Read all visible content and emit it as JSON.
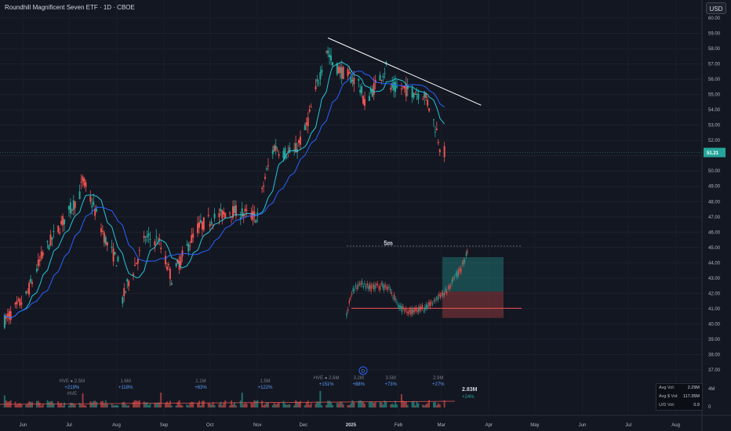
{
  "header": {
    "title": "Roundhill Magnificent Seven ETF · 1D · CBOE",
    "currency": "USD"
  },
  "colors": {
    "background": "#131722",
    "up": "#26a69a",
    "down": "#ef5350",
    "ma_fast": "#2962ff",
    "ma_slow": "#26c6da",
    "trendline": "#ffffff",
    "price_label": "#26a69a"
  },
  "chart_data": {
    "type": "candlestick",
    "title": "Roundhill Magnificent Seven ETF · 1D · CBOE",
    "y_ticks": [
      "60.00",
      "59.00",
      "58.00",
      "57.00",
      "56.00",
      "55.00",
      "54.00",
      "53.00",
      "52.00",
      "51.00",
      "50.00",
      "49.00",
      "48.00",
      "47.00",
      "46.00",
      "45.00",
      "44.00",
      "43.00",
      "42.00",
      "41.00",
      "40.00",
      "39.00",
      "38.00",
      "37.00"
    ],
    "ylim": [
      36.5,
      60.5
    ],
    "x_ticks": [
      "Jun",
      "Jul",
      "Aug",
      "Sep",
      "Oct",
      "Nov",
      "Dec",
      "2025",
      "Feb",
      "Mar",
      "Apr",
      "May",
      "Jun",
      "Jul",
      "Aug"
    ],
    "last_price": "51.21",
    "path": [
      [
        "2024-05-20",
        40.2
      ],
      [
        "2024-06-03",
        41.8
      ],
      [
        "2024-06-14",
        44.6
      ],
      [
        "2024-06-24",
        46.2
      ],
      [
        "2024-07-08",
        48.5
      ],
      [
        "2024-07-10",
        49.4
      ],
      [
        "2024-07-18",
        47.4
      ],
      [
        "2024-07-26",
        45.2
      ],
      [
        "2024-08-02",
        44.0
      ],
      [
        "2024-08-05",
        41.6
      ],
      [
        "2024-08-09",
        42.8
      ],
      [
        "2024-08-20",
        45.6
      ],
      [
        "2024-08-28",
        45.5
      ],
      [
        "2024-09-06",
        43.0
      ],
      [
        "2024-09-12",
        44.2
      ],
      [
        "2024-09-23",
        46.3
      ],
      [
        "2024-10-01",
        46.8
      ],
      [
        "2024-10-14",
        47.4
      ],
      [
        "2024-10-24",
        47.2
      ],
      [
        "2024-11-01",
        47.0
      ],
      [
        "2024-11-06",
        49.6
      ],
      [
        "2024-11-12",
        51.6
      ],
      [
        "2024-11-18",
        51.2
      ],
      [
        "2024-11-25",
        51.2
      ],
      [
        "2024-12-02",
        52.6
      ],
      [
        "2024-12-09",
        55.2
      ],
      [
        "2024-12-16",
        58.0
      ],
      [
        "2024-12-20",
        57.0
      ],
      [
        "2024-12-27",
        56.4
      ],
      [
        "2025-01-06",
        55.8
      ],
      [
        "2025-01-10",
        54.4
      ],
      [
        "2025-01-17",
        55.6
      ],
      [
        "2025-01-24",
        56.8
      ],
      [
        "2025-01-27",
        55.4
      ],
      [
        "2025-02-03",
        55.4
      ],
      [
        "2025-02-10",
        55.2
      ],
      [
        "2025-02-18",
        55.0
      ],
      [
        "2025-02-21",
        54.2
      ],
      [
        "2025-02-26",
        52.6
      ],
      [
        "2025-03-01",
        51.2
      ],
      [
        "2025-03-03",
        51.21
      ]
    ],
    "trendline": [
      [
        "2024-12-17",
        58.7
      ],
      [
        "2025-03-27",
        54.3
      ]
    ],
    "volume": {
      "axis_labels": [
        "4M",
        "0"
      ],
      "labels": [
        {
          "date": "2024-07-03",
          "value": "HVE ● 2.5M"
        },
        {
          "date": "2024-07-03",
          "value": "+219%"
        },
        {
          "date": "2024-07-03",
          "value": "HVE"
        },
        {
          "date": "2024-08-07",
          "value": "1.6M"
        },
        {
          "date": "2024-08-07",
          "value": "+118%"
        },
        {
          "date": "2024-09-25",
          "value": "1.1M"
        },
        {
          "date": "2024-09-25",
          "value": "+63%"
        },
        {
          "date": "2024-11-06",
          "value": "1.5M"
        },
        {
          "date": "2024-11-06",
          "value": "+122%"
        },
        {
          "date": "2024-12-16",
          "value": "HVE ● 2.6M"
        },
        {
          "date": "2024-12-16",
          "value": "+151%"
        },
        {
          "date": "2025-01-06",
          "value": "3.2M"
        },
        {
          "date": "2025-01-06",
          "value": "+88%"
        },
        {
          "date": "2025-01-27",
          "value": "3.5M"
        },
        {
          "date": "2025-01-27",
          "value": "+73%"
        },
        {
          "date": "2025-02-27",
          "value": "2.9M"
        },
        {
          "date": "2025-02-27",
          "value": "+27%"
        }
      ],
      "current": "2.83M",
      "current_change": "+24%"
    },
    "inset": {
      "label": "5m",
      "stop_level": 41.45,
      "entry_level": 42.4,
      "target_level": 44.35
    }
  },
  "stats": [
    {
      "label": "Avg Vol:",
      "value": "2.29M"
    },
    {
      "label": "Avg $ Vol:",
      "value": "117.35M"
    },
    {
      "label": "U/D Vol:",
      "value": "0.9"
    }
  ],
  "event_marker": "D"
}
